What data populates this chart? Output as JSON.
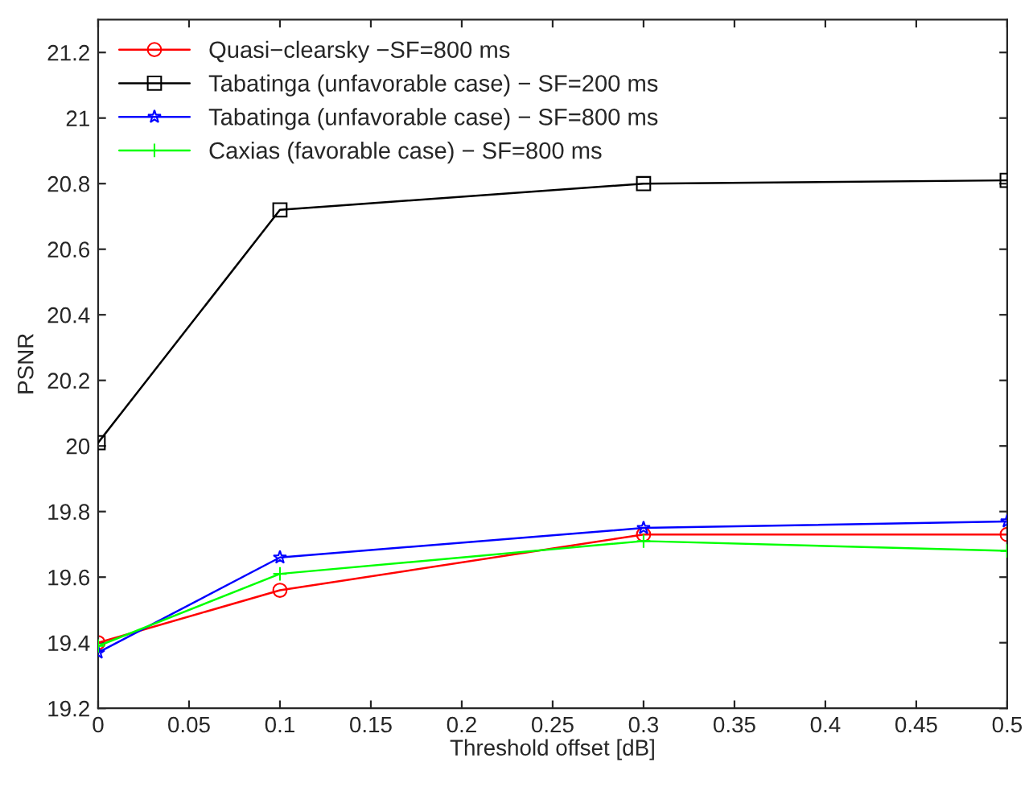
{
  "chart_data": {
    "type": "line",
    "xlabel": "Threshold offset [dB]",
    "ylabel": "PSNR",
    "x": [
      0,
      0.1,
      0.3,
      0.5
    ],
    "series": [
      {
        "name": "Quasi−clearsky −SF=800 ms",
        "color": "#ff0000",
        "marker": "circle",
        "values": [
          19.4,
          19.56,
          19.73,
          19.73
        ]
      },
      {
        "name": "Tabatinga (unfavorable case) − SF=200 ms",
        "color": "#000000",
        "marker": "square",
        "values": [
          20.01,
          20.72,
          20.8,
          20.81
        ]
      },
      {
        "name": "Tabatinga (unfavorable case) − SF=800 ms",
        "color": "#0000ff",
        "marker": "star",
        "values": [
          19.37,
          19.66,
          19.75,
          19.77
        ]
      },
      {
        "name": "Caxias (favorable case) − SF=800 ms",
        "color": "#00ff00",
        "marker": "cross",
        "values": [
          19.39,
          19.61,
          19.71,
          19.68
        ]
      }
    ],
    "xlim": [
      0,
      0.5
    ],
    "xticks": [
      0,
      0.05,
      0.1,
      0.15,
      0.2,
      0.25,
      0.3,
      0.35,
      0.4,
      0.45,
      0.5
    ],
    "ylim": [
      19.2,
      21.3
    ],
    "yticks": [
      19.2,
      19.4,
      19.6,
      19.8,
      20,
      20.2,
      20.4,
      20.6,
      20.8,
      21,
      21.2
    ],
    "grid": false,
    "legend": "top left",
    "line_style": "solid"
  }
}
